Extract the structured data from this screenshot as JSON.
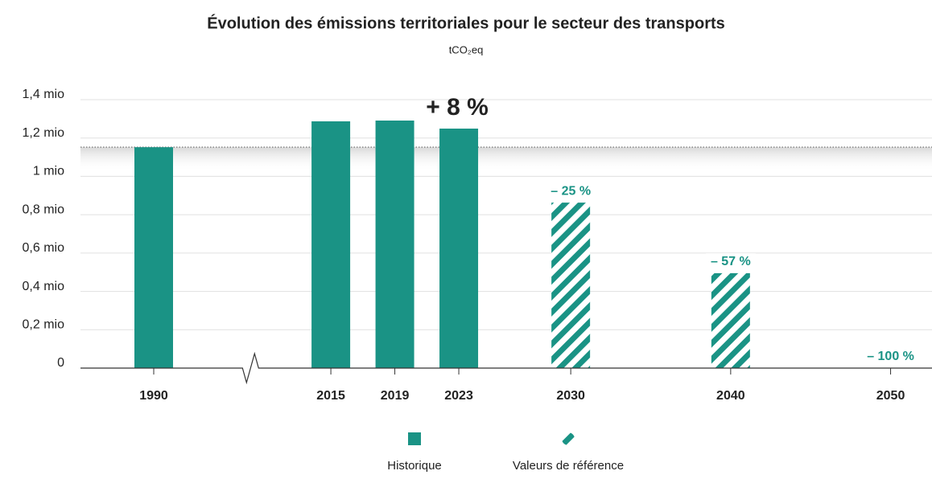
{
  "chart_data": {
    "type": "bar",
    "title": "Évolution des émissions territoriales pour le secteur des transports",
    "subtitle": "tCO₂eq",
    "x": [
      1990,
      2015,
      2019,
      2023,
      2030,
      2040,
      2050
    ],
    "xlim": [
      2011,
      2052
    ],
    "axis_break": true,
    "series": [
      {
        "name": "Historique",
        "color": "#1a9385",
        "style": "solid",
        "values": [
          1152000,
          1287000,
          1291000,
          1249000,
          null,
          null,
          null
        ]
      },
      {
        "name": "Valeurs de référence",
        "color": "#1a9385",
        "style": "hatched",
        "values": [
          null,
          null,
          null,
          null,
          863000,
          495000,
          0
        ]
      }
    ],
    "annotations": [
      {
        "text": "+ 8 %",
        "x": 2023
      },
      {
        "text": "– 25 %",
        "x": 2030
      },
      {
        "text": "– 57 %",
        "x": 2040
      },
      {
        "text": "– 100 %",
        "x": 2050
      }
    ],
    "reference_line": 1152000,
    "ylim": [
      0,
      1400000
    ],
    "yticks": [
      0,
      {
        "value": 200000,
        "label": "0,2 mio"
      },
      {
        "value": 400000,
        "label": "0,4 mio"
      },
      {
        "value": 600000,
        "label": "0,6 mio"
      },
      {
        "value": 800000,
        "label": "0,8 mio"
      },
      {
        "value": 1000000,
        "label": "1 mio"
      },
      {
        "value": 1200000,
        "label": "1,2 mio"
      },
      {
        "value": 1400000,
        "label": "1,4 mio"
      }
    ],
    "grid": true,
    "legend": "bottom"
  }
}
